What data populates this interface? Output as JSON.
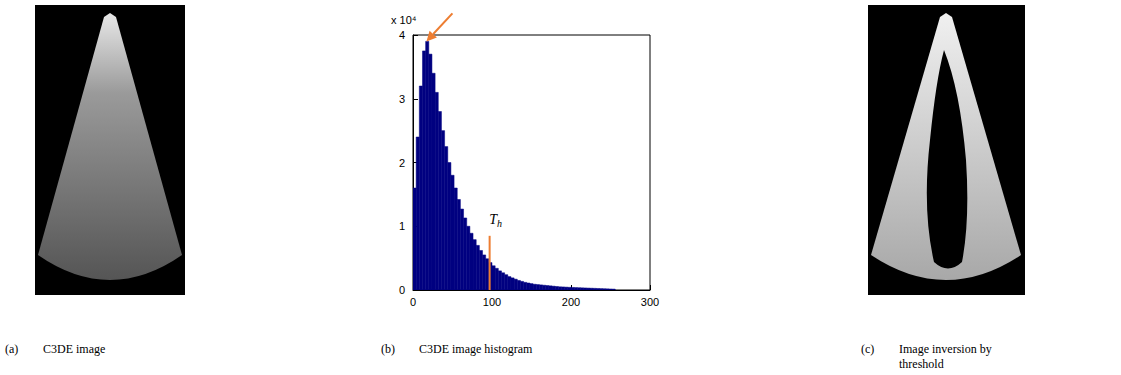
{
  "panels": [
    {
      "letter": "(a)",
      "caption": "C3DE image"
    },
    {
      "letter": "(b)",
      "caption": "C3DE image histogram"
    },
    {
      "letter": "(c)",
      "caption": "Image inversion by threshold"
    }
  ],
  "chart_data": {
    "type": "histogram",
    "bins": [
      0,
      4,
      8,
      12,
      16,
      20,
      24,
      28,
      32,
      36,
      40,
      44,
      48,
      52,
      56,
      60,
      64,
      68,
      72,
      76,
      80,
      84,
      88,
      92,
      96,
      100,
      104,
      108,
      112,
      116,
      120,
      124,
      128,
      132,
      136,
      140,
      144,
      148,
      152,
      156,
      160,
      164,
      168,
      172,
      176,
      180,
      184,
      188,
      192,
      196,
      200,
      204,
      208,
      212,
      216,
      220,
      224,
      228,
      232,
      236,
      240,
      244,
      248,
      252,
      256
    ],
    "values": [
      1.6,
      2.4,
      3.2,
      3.75,
      3.9,
      3.7,
      3.4,
      3.1,
      2.8,
      2.5,
      2.25,
      2.0,
      1.8,
      1.6,
      1.42,
      1.27,
      1.13,
      1.0,
      0.89,
      0.79,
      0.7,
      0.62,
      0.55,
      0.49,
      0.43,
      0.38,
      0.34,
      0.3,
      0.27,
      0.24,
      0.21,
      0.19,
      0.17,
      0.15,
      0.135,
      0.12,
      0.11,
      0.1,
      0.09,
      0.085,
      0.08,
      0.075,
      0.07,
      0.065,
      0.06,
      0.055,
      0.05,
      0.048,
      0.045,
      0.042,
      0.04,
      0.038,
      0.036,
      0.034,
      0.032,
      0.03,
      0.028,
      0.026,
      0.024,
      0.022,
      0.02,
      0.018,
      0.016,
      0.014
    ],
    "color": "#000080",
    "xlim": [
      0,
      300
    ],
    "xticks": [
      0,
      100,
      200,
      300
    ],
    "ylim": [
      0,
      4
    ],
    "yticks": [
      0,
      1,
      2,
      3,
      4
    ],
    "y_multiplier": "x 10⁴",
    "threshold": {
      "label": "T",
      "subscript": "h",
      "x": 97,
      "height": 0.85,
      "color": "#ed7d31"
    },
    "peak_arrow": {
      "x": 17,
      "y": 3.9,
      "color": "#ed7d31"
    },
    "grid": false
  }
}
